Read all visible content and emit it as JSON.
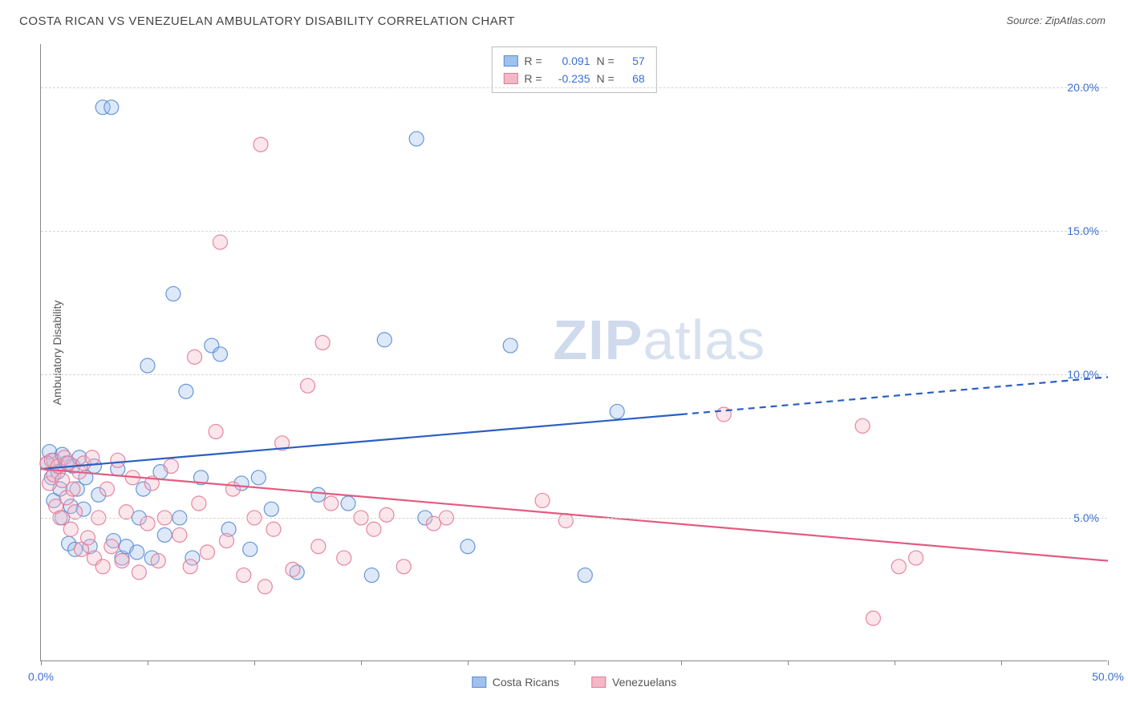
{
  "title": "COSTA RICAN VS VENEZUELAN AMBULATORY DISABILITY CORRELATION CHART",
  "source": "Source: ZipAtlas.com",
  "ylabel": "Ambulatory Disability",
  "watermark_a": "ZIP",
  "watermark_b": "atlas",
  "chart": {
    "type": "scatter",
    "background_color": "#ffffff",
    "grid_color": "#d5d5d5",
    "axis_color": "#888888",
    "xlim": [
      0,
      50
    ],
    "ylim": [
      0,
      21.5
    ],
    "xticks": [
      0,
      5,
      10,
      15,
      20,
      25,
      30,
      35,
      40,
      45,
      50
    ],
    "xtick_labels": {
      "0": "0.0%",
      "50": "50.0%"
    },
    "yticks": [
      5,
      10,
      15,
      20
    ],
    "ytick_labels": {
      "5": "5.0%",
      "10": "10.0%",
      "15": "15.0%",
      "20": "20.0%"
    },
    "marker_radius": 9,
    "marker_opacity": 0.35,
    "marker_stroke_opacity": 0.9,
    "line_width": 2.2,
    "series": [
      {
        "name": "Costa Ricans",
        "color_fill": "#9fc1ec",
        "color_stroke": "#5a8bd6",
        "line_color": "#2b5fc1",
        "R": "0.091",
        "N": "57",
        "trend": {
          "x1": 0,
          "y1": 6.7,
          "x2_solid": 30,
          "y2_solid": 8.6,
          "x2": 50,
          "y2": 9.9
        },
        "points": [
          [
            0.3,
            6.9
          ],
          [
            0.4,
            7.3
          ],
          [
            0.5,
            6.4
          ],
          [
            0.6,
            7.0
          ],
          [
            0.6,
            5.6
          ],
          [
            0.8,
            6.6
          ],
          [
            0.9,
            6.0
          ],
          [
            1.0,
            7.2
          ],
          [
            1.0,
            5.0
          ],
          [
            1.2,
            6.9
          ],
          [
            1.3,
            4.1
          ],
          [
            1.4,
            5.4
          ],
          [
            1.5,
            6.8
          ],
          [
            1.6,
            3.9
          ],
          [
            1.7,
            6.0
          ],
          [
            1.8,
            7.1
          ],
          [
            2.0,
            5.3
          ],
          [
            2.1,
            6.4
          ],
          [
            2.3,
            4.0
          ],
          [
            2.5,
            6.8
          ],
          [
            2.7,
            5.8
          ],
          [
            2.9,
            19.3
          ],
          [
            3.3,
            19.3
          ],
          [
            3.4,
            4.2
          ],
          [
            3.6,
            6.7
          ],
          [
            3.8,
            3.6
          ],
          [
            4.0,
            4.0
          ],
          [
            4.5,
            3.8
          ],
          [
            4.6,
            5.0
          ],
          [
            4.8,
            6.0
          ],
          [
            5.0,
            10.3
          ],
          [
            5.2,
            3.6
          ],
          [
            5.6,
            6.6
          ],
          [
            5.8,
            4.4
          ],
          [
            6.2,
            12.8
          ],
          [
            6.5,
            5.0
          ],
          [
            6.8,
            9.4
          ],
          [
            7.1,
            3.6
          ],
          [
            7.5,
            6.4
          ],
          [
            8.0,
            11.0
          ],
          [
            8.4,
            10.7
          ],
          [
            8.8,
            4.6
          ],
          [
            9.4,
            6.2
          ],
          [
            9.8,
            3.9
          ],
          [
            10.2,
            6.4
          ],
          [
            10.8,
            5.3
          ],
          [
            12.0,
            3.1
          ],
          [
            13.0,
            5.8
          ],
          [
            14.4,
            5.5
          ],
          [
            15.5,
            3.0
          ],
          [
            16.1,
            11.2
          ],
          [
            17.6,
            18.2
          ],
          [
            18.0,
            5.0
          ],
          [
            20.0,
            4.0
          ],
          [
            22.0,
            11.0
          ],
          [
            25.5,
            3.0
          ],
          [
            27.0,
            8.7
          ]
        ]
      },
      {
        "name": "Venezuelans",
        "color_fill": "#f3b7c6",
        "color_stroke": "#e47a97",
        "line_color": "#e35b7f",
        "R": "-0.235",
        "N": "68",
        "trend": {
          "x1": 0,
          "y1": 6.7,
          "x2_solid": 50,
          "y2_solid": 3.5,
          "x2": 50,
          "y2": 3.5
        },
        "points": [
          [
            0.3,
            6.9
          ],
          [
            0.4,
            6.2
          ],
          [
            0.5,
            7.0
          ],
          [
            0.6,
            6.5
          ],
          [
            0.7,
            5.4
          ],
          [
            0.8,
            6.8
          ],
          [
            0.9,
            5.0
          ],
          [
            1.0,
            6.3
          ],
          [
            1.1,
            7.1
          ],
          [
            1.2,
            5.7
          ],
          [
            1.3,
            6.9
          ],
          [
            1.4,
            4.6
          ],
          [
            1.5,
            6.0
          ],
          [
            1.6,
            5.2
          ],
          [
            1.8,
            6.6
          ],
          [
            1.9,
            3.9
          ],
          [
            2.0,
            6.9
          ],
          [
            2.2,
            4.3
          ],
          [
            2.4,
            7.1
          ],
          [
            2.5,
            3.6
          ],
          [
            2.7,
            5.0
          ],
          [
            2.9,
            3.3
          ],
          [
            3.1,
            6.0
          ],
          [
            3.3,
            4.0
          ],
          [
            3.6,
            7.0
          ],
          [
            3.8,
            3.5
          ],
          [
            4.0,
            5.2
          ],
          [
            4.3,
            6.4
          ],
          [
            4.6,
            3.1
          ],
          [
            5.0,
            4.8
          ],
          [
            5.2,
            6.2
          ],
          [
            5.5,
            3.5
          ],
          [
            5.8,
            5.0
          ],
          [
            6.1,
            6.8
          ],
          [
            6.5,
            4.4
          ],
          [
            7.0,
            3.3
          ],
          [
            7.2,
            10.6
          ],
          [
            7.4,
            5.5
          ],
          [
            7.8,
            3.8
          ],
          [
            8.2,
            8.0
          ],
          [
            8.4,
            14.6
          ],
          [
            8.7,
            4.2
          ],
          [
            9.0,
            6.0
          ],
          [
            9.5,
            3.0
          ],
          [
            10.0,
            5.0
          ],
          [
            10.3,
            18.0
          ],
          [
            10.5,
            2.6
          ],
          [
            10.9,
            4.6
          ],
          [
            11.3,
            7.6
          ],
          [
            11.8,
            3.2
          ],
          [
            12.5,
            9.6
          ],
          [
            13.0,
            4.0
          ],
          [
            13.2,
            11.1
          ],
          [
            13.6,
            5.5
          ],
          [
            14.2,
            3.6
          ],
          [
            15.0,
            5.0
          ],
          [
            15.6,
            4.6
          ],
          [
            16.2,
            5.1
          ],
          [
            17.0,
            3.3
          ],
          [
            18.4,
            4.8
          ],
          [
            19.0,
            5.0
          ],
          [
            23.5,
            5.6
          ],
          [
            24.6,
            4.9
          ],
          [
            32.0,
            8.6
          ],
          [
            38.5,
            8.2
          ],
          [
            40.2,
            3.3
          ],
          [
            41.0,
            3.6
          ],
          [
            39.0,
            1.5
          ]
        ]
      }
    ]
  },
  "legend_top": {
    "R_label": "R =",
    "N_label": "N ="
  },
  "legend_bottom": [
    {
      "label": "Costa Ricans",
      "fill": "#9fc1ec",
      "stroke": "#5a8bd6"
    },
    {
      "label": "Venezuelans",
      "fill": "#f3b7c6",
      "stroke": "#e47a97"
    }
  ]
}
